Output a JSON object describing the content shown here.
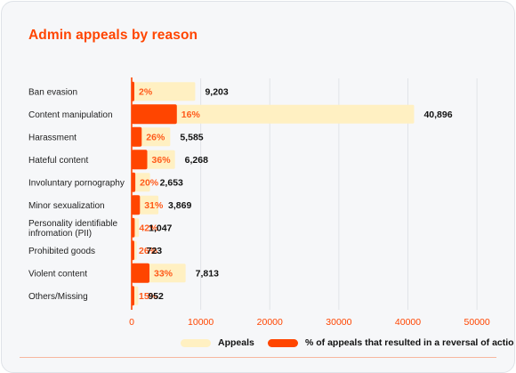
{
  "chart_data": {
    "type": "bar",
    "title": "Admin appeals by reason",
    "categories": [
      "Ban evasion",
      "Content manipulation",
      "Harassment",
      "Hateful content",
      "Involuntary pornography",
      "Minor sexualization",
      "Personality identifiable infromation (PII)",
      "Prohibited goods",
      "Violent content",
      "Others/Missing"
    ],
    "category_lines": [
      [
        "Ban evasion"
      ],
      [
        "Content manipulation"
      ],
      [
        "Harassment"
      ],
      [
        "Hateful content"
      ],
      [
        "Involuntary pornography"
      ],
      [
        "Minor sexualization"
      ],
      [
        "Personality identifiable",
        "infromation (PII)"
      ],
      [
        "Prohibited goods"
      ],
      [
        "Violent content"
      ],
      [
        "Others/Missing"
      ]
    ],
    "series": [
      {
        "name": "Appeals",
        "color": "#fff0c2",
        "values": [
          9203,
          40896,
          5585,
          6268,
          2653,
          3869,
          1047,
          723,
          7813,
          952
        ],
        "labels": [
          "9,203",
          "40,896",
          "5,585",
          "6,268",
          "2,653",
          "3,869",
          "1,047",
          "723",
          "7,813",
          "952"
        ]
      },
      {
        "name": "% of appeals that resulted in a reversal of action",
        "color": "#ff4500",
        "percent_values": [
          2,
          16,
          26,
          36,
          20,
          31,
          42,
          26,
          33,
          15
        ],
        "labels": [
          "2%",
          "16%",
          "26%",
          "36%",
          "20%",
          "31%",
          "42%",
          "26%",
          "33%",
          "15%"
        ]
      }
    ],
    "xlim": [
      0,
      50000
    ],
    "xticks": [
      0,
      10000,
      20000,
      30000,
      40000,
      50000
    ],
    "xtick_labels": [
      "0",
      "10000",
      "20000",
      "30000",
      "40000",
      "50000"
    ],
    "grid": true,
    "legend_position": "bottom-right",
    "colors": {
      "title": "#ff4500",
      "axis": "#ff4500",
      "percent_text": "#ff5a1a",
      "value_text": "#111111",
      "grid": "#e1e4e8"
    }
  }
}
